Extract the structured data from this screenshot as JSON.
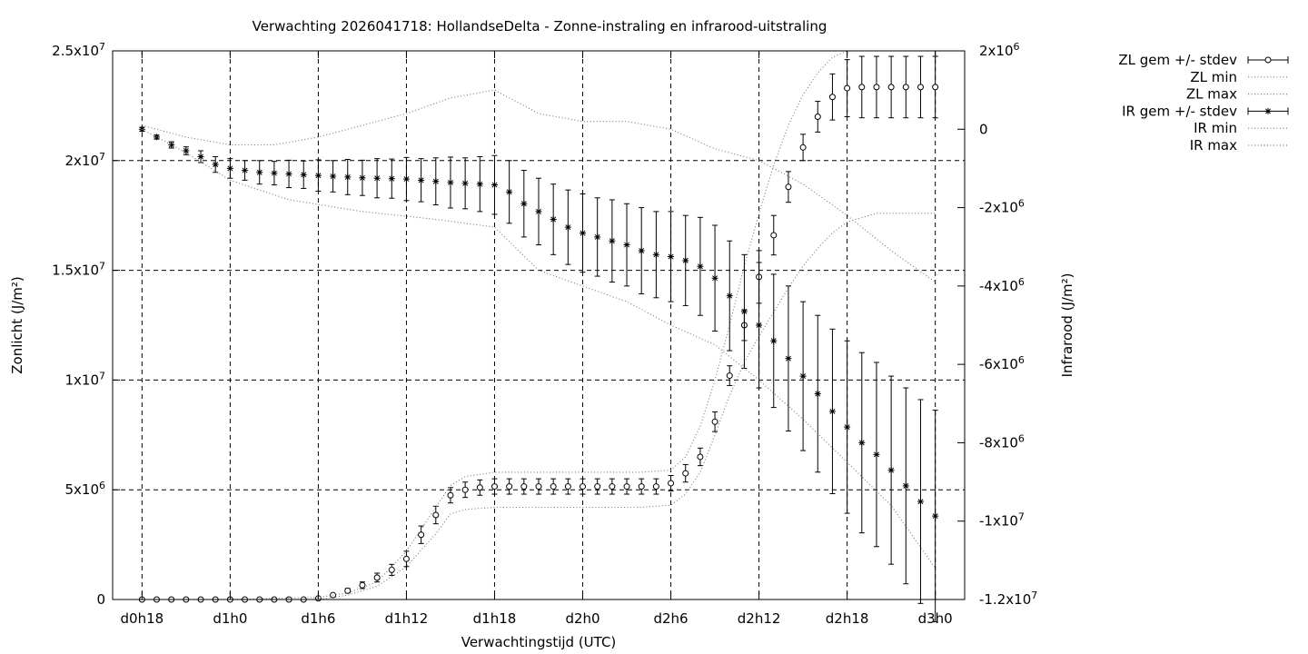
{
  "chart_data": {
    "type": "line",
    "title": "Verwachting 2026041718: HollandseDelta - Zonne-instraling en infrarood-uitstraling",
    "xlabel": "Verwachtingstijd (UTC)",
    "ylabel": "Zonlicht (J/m²)",
    "y2label": "Infrarood (J/m²)",
    "x_unit": "hours since d0h18",
    "xlim": [
      -2,
      56
    ],
    "ylim": [
      0,
      25000000
    ],
    "y2lim": [
      -12000000,
      2000000
    ],
    "x_ticks": [
      {
        "x": 0,
        "label": "d0h18"
      },
      {
        "x": 6,
        "label": "d1h0"
      },
      {
        "x": 12,
        "label": "d1h6"
      },
      {
        "x": 18,
        "label": "d1h12"
      },
      {
        "x": 24,
        "label": "d1h18"
      },
      {
        "x": 30,
        "label": "d2h0"
      },
      {
        "x": 36,
        "label": "d2h6"
      },
      {
        "x": 42,
        "label": "d2h12"
      },
      {
        "x": 48,
        "label": "d2h18"
      },
      {
        "x": 54,
        "label": "d3h0"
      }
    ],
    "y_ticks": [
      {
        "v": 0,
        "base": "0",
        "exp": ""
      },
      {
        "v": 5000000,
        "base": "5x10",
        "exp": "6"
      },
      {
        "v": 10000000,
        "base": "1x10",
        "exp": "7"
      },
      {
        "v": 15000000,
        "base": "1.5x10",
        "exp": "7"
      },
      {
        "v": 20000000,
        "base": "2x10",
        "exp": "7"
      },
      {
        "v": 25000000,
        "base": "2.5x10",
        "exp": "7"
      }
    ],
    "y2_ticks": [
      {
        "v": -12000000,
        "base": "-1.2x10",
        "exp": "7"
      },
      {
        "v": -10000000,
        "base": "-1x10",
        "exp": "7"
      },
      {
        "v": -8000000,
        "base": "-8x10",
        "exp": "6"
      },
      {
        "v": -6000000,
        "base": "-6x10",
        "exp": "6"
      },
      {
        "v": -4000000,
        "base": "-4x10",
        "exp": "6"
      },
      {
        "v": -2000000,
        "base": "-2x10",
        "exp": "6"
      },
      {
        "v": 0,
        "base": "0",
        "exp": ""
      },
      {
        "v": 2000000,
        "base": "2x10",
        "exp": "6"
      }
    ],
    "grid": true,
    "legend_position": "outside-top-right",
    "series": [
      {
        "name": "ZL gem +/- stdev",
        "axis": "y",
        "marker": "circle",
        "x": [
          0,
          1,
          2,
          3,
          4,
          5,
          6,
          7,
          8,
          9,
          10,
          11,
          12,
          13,
          14,
          15,
          16,
          17,
          18,
          19,
          20,
          21,
          22,
          23,
          24,
          25,
          26,
          27,
          28,
          29,
          30,
          31,
          32,
          33,
          34,
          35,
          36,
          37,
          38,
          39,
          40,
          41,
          42,
          43,
          44,
          45,
          46,
          47,
          48,
          49,
          50,
          51,
          52,
          53,
          54
        ],
        "y": [
          0,
          0,
          0,
          0,
          0,
          0,
          0,
          0,
          0,
          0,
          0,
          0,
          50000,
          200000,
          400000,
          650000,
          1000000,
          1350000,
          1850000,
          2950000,
          3850000,
          4750000,
          5000000,
          5100000,
          5150000,
          5150000,
          5150000,
          5150000,
          5150000,
          5150000,
          5150000,
          5150000,
          5150000,
          5150000,
          5150000,
          5150000,
          5300000,
          5750000,
          6500000,
          8100000,
          10200000,
          12500000,
          14700000,
          16600000,
          18800000,
          20600000,
          22000000,
          22900000,
          23300000,
          23350000,
          23350000,
          23350000,
          23350000,
          23350000,
          23350000
        ],
        "err": [
          0,
          0,
          0,
          0,
          0,
          0,
          0,
          0,
          0,
          0,
          0,
          0,
          20000,
          60000,
          100000,
          150000,
          200000,
          250000,
          350000,
          400000,
          400000,
          350000,
          350000,
          350000,
          350000,
          350000,
          350000,
          350000,
          350000,
          350000,
          350000,
          350000,
          350000,
          350000,
          350000,
          350000,
          350000,
          400000,
          400000,
          450000,
          450000,
          700000,
          1200000,
          900000,
          700000,
          600000,
          700000,
          1050000,
          1300000,
          1400000,
          1400000,
          1400000,
          1400000,
          1400000,
          1400000
        ]
      },
      {
        "name": "ZL min",
        "axis": "y",
        "style": "dotted",
        "x": [
          0,
          6,
          12,
          14,
          16,
          18,
          20,
          21,
          22,
          24,
          26,
          28,
          30,
          32,
          34,
          36,
          37,
          38,
          39,
          40,
          41,
          42,
          43,
          44,
          45,
          46,
          47,
          48,
          50,
          52,
          54
        ],
        "y": [
          0,
          0,
          0,
          200000,
          600000,
          1500000,
          3000000,
          3900000,
          4100000,
          4200000,
          4200000,
          4200000,
          4200000,
          4200000,
          4200000,
          4300000,
          4800000,
          5800000,
          7500000,
          9300000,
          10800000,
          12000000,
          13100000,
          14200000,
          15200000,
          16000000,
          16700000,
          17200000,
          17600000,
          17600000,
          17600000
        ]
      },
      {
        "name": "ZL max",
        "axis": "y",
        "style": "dotted",
        "x": [
          0,
          6,
          12,
          14,
          16,
          18,
          20,
          21,
          22,
          24,
          26,
          28,
          30,
          32,
          34,
          36,
          37,
          38,
          39,
          40,
          41,
          42,
          43,
          44,
          45,
          46,
          47,
          48,
          50,
          52,
          54
        ],
        "y": [
          0,
          0,
          100000,
          300000,
          800000,
          2200000,
          4200000,
          5200000,
          5600000,
          5800000,
          5800000,
          5800000,
          5800000,
          5800000,
          5800000,
          5900000,
          6500000,
          7900000,
          10000000,
          12500000,
          15200000,
          17600000,
          19800000,
          21600000,
          23000000,
          24000000,
          24700000,
          25000000,
          25000000,
          25000000,
          25000000
        ]
      },
      {
        "name": "IR gem +/- stdev",
        "axis": "y2",
        "marker": "star",
        "x": [
          0,
          1,
          2,
          3,
          4,
          5,
          6,
          7,
          8,
          9,
          10,
          11,
          12,
          13,
          14,
          15,
          16,
          17,
          18,
          19,
          20,
          21,
          22,
          23,
          24,
          25,
          26,
          27,
          28,
          29,
          30,
          31,
          32,
          33,
          34,
          35,
          36,
          37,
          38,
          39,
          40,
          41,
          42,
          43,
          44,
          45,
          46,
          47,
          48,
          49,
          50,
          51,
          52,
          53,
          54
        ],
        "y": [
          0,
          -200000,
          -400000,
          -550000,
          -700000,
          -900000,
          -1000000,
          -1050000,
          -1100000,
          -1120000,
          -1140000,
          -1160000,
          -1180000,
          -1200000,
          -1220000,
          -1240000,
          -1250000,
          -1260000,
          -1270000,
          -1300000,
          -1330000,
          -1360000,
          -1380000,
          -1400000,
          -1420000,
          -1600000,
          -1900000,
          -2100000,
          -2300000,
          -2500000,
          -2650000,
          -2750000,
          -2850000,
          -2950000,
          -3100000,
          -3200000,
          -3250000,
          -3350000,
          -3500000,
          -3800000,
          -4250000,
          -4650000,
          -5000000,
          -5400000,
          -5850000,
          -6300000,
          -6750000,
          -7200000,
          -7600000,
          -8000000,
          -8300000,
          -8700000,
          -9100000,
          -9500000,
          -9870000
        ],
        "err": [
          50000,
          50000,
          80000,
          100000,
          150000,
          200000,
          250000,
          250000,
          300000,
          300000,
          350000,
          350000,
          400000,
          400000,
          450000,
          450000,
          500000,
          500000,
          550000,
          550000,
          600000,
          650000,
          650000,
          700000,
          750000,
          800000,
          850000,
          850000,
          900000,
          950000,
          1000000,
          1000000,
          1050000,
          1050000,
          1100000,
          1100000,
          1150000,
          1150000,
          1250000,
          1350000,
          1400000,
          1450000,
          1600000,
          1700000,
          1850000,
          1900000,
          2000000,
          2100000,
          2200000,
          2300000,
          2350000,
          2400000,
          2500000,
          2600000,
          2700000
        ]
      },
      {
        "name": "IR min",
        "axis": "y2",
        "style": "dotted",
        "x": [
          0,
          3,
          6,
          10,
          15,
          20,
          24,
          27,
          30,
          33,
          36,
          39,
          42,
          45,
          48,
          51,
          54
        ],
        "y": [
          0,
          -600000,
          -1300000,
          -1800000,
          -2100000,
          -2300000,
          -2500000,
          -3600000,
          -4000000,
          -4400000,
          -5000000,
          -5500000,
          -6400000,
          -7400000,
          -8500000,
          -9600000,
          -11200000
        ]
      },
      {
        "name": "IR max",
        "axis": "y2",
        "style": "dotted",
        "x": [
          0,
          3,
          6,
          9,
          12,
          15,
          18,
          21,
          24,
          27,
          30,
          33,
          36,
          39,
          42,
          45,
          48,
          51,
          54
        ],
        "y": [
          100000,
          -200000,
          -400000,
          -400000,
          -200000,
          100000,
          400000,
          800000,
          1000000,
          400000,
          200000,
          200000,
          0,
          -500000,
          -800000,
          -1400000,
          -2200000,
          -3100000,
          -3900000
        ]
      }
    ]
  }
}
